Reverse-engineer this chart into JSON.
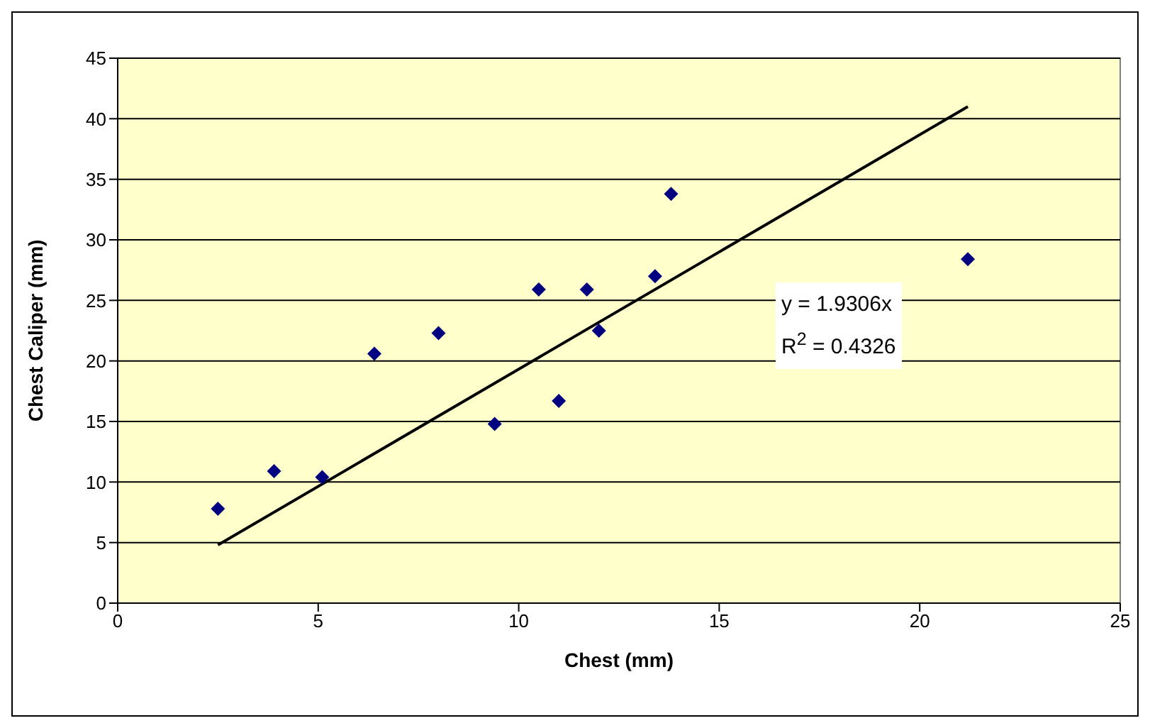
{
  "chart_data": {
    "type": "scatter",
    "xlabel": "Chest (mm)",
    "ylabel": "Chest Caliper (mm)",
    "xlim": [
      0,
      25
    ],
    "xticks": [
      0,
      5,
      10,
      15,
      20,
      25
    ],
    "ylim": [
      0,
      45
    ],
    "yticks": [
      0,
      5,
      10,
      15,
      20,
      25,
      30,
      35,
      40,
      45
    ],
    "grid": "y",
    "marker": "diamond",
    "annotations": [
      "y = 1.9306x",
      "R$^{2}$ = 0.4326"
    ],
    "series": [
      {
        "color": "#000080",
        "x": [
          2.5,
          3.9,
          5.1,
          6.4,
          8.0,
          9.4,
          10.5,
          11.0,
          11.7,
          12.0,
          13.4,
          13.8,
          21.2
        ],
        "values": [
          7.8,
          10.9,
          10.4,
          20.6,
          22.3,
          14.8,
          25.9,
          16.7,
          25.9,
          22.5,
          27.0,
          33.8,
          28.4
        ]
      },
      {
        "type": "line",
        "marker": "none",
        "color": "#000000",
        "x": [
          2.5,
          21.2
        ],
        "values": [
          4.8,
          41.0
        ]
      }
    ]
  }
}
